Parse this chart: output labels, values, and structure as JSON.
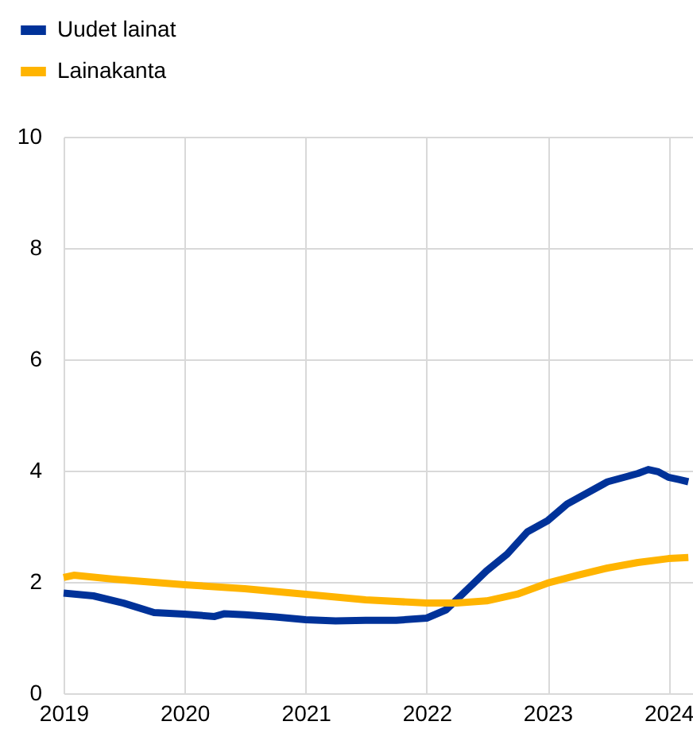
{
  "chart_data": {
    "type": "line",
    "xlim": [
      "2019-01-01",
      "2024-03-15"
    ],
    "xticks": [
      {
        "value": "2019-01-01",
        "label": "2019"
      },
      {
        "value": "2020-01-01",
        "label": "2020"
      },
      {
        "value": "2021-01-01",
        "label": "2021"
      },
      {
        "value": "2022-01-01",
        "label": "2022"
      },
      {
        "value": "2023-01-01",
        "label": "2023"
      },
      {
        "value": "2024-01-01",
        "label": "2024"
      }
    ],
    "ylim": [
      0,
      10
    ],
    "yticks": [
      0,
      2,
      4,
      6,
      8,
      10
    ],
    "grid": true,
    "legend": "top left",
    "line_style": "solid",
    "marker": "none",
    "series": [
      {
        "name": "Uudet lainat",
        "color": "#003299",
        "x": [
          "2019-01",
          "2019-04",
          "2019-07",
          "2019-10",
          "2020-01",
          "2020-04",
          "2020-05",
          "2020-07",
          "2020-10",
          "2021-01",
          "2021-04",
          "2021-07",
          "2021-10",
          "2022-01",
          "2022-03",
          "2022-05",
          "2022-07",
          "2022-09",
          "2022-11",
          "2023-01",
          "2023-03",
          "2023-05",
          "2023-07",
          "2023-09",
          "2023-10",
          "2023-11",
          "2023-12",
          "2024-01",
          "2024-02",
          "2024-03"
        ],
        "values": [
          1.8,
          1.75,
          1.62,
          1.45,
          1.42,
          1.38,
          1.43,
          1.41,
          1.37,
          1.32,
          1.3,
          1.31,
          1.31,
          1.35,
          1.5,
          1.85,
          2.2,
          2.5,
          2.9,
          3.1,
          3.4,
          3.6,
          3.8,
          3.9,
          3.95,
          4.02,
          3.98,
          3.88,
          3.84,
          3.8
        ]
      },
      {
        "name": "Lainakanta",
        "color": "#ffb400",
        "x": [
          "2019-01",
          "2019-02",
          "2019-06",
          "2020-01",
          "2020-07",
          "2021-01",
          "2021-07",
          "2022-01",
          "2022-04",
          "2022-07",
          "2022-10",
          "2023-01",
          "2023-04",
          "2023-07",
          "2023-10",
          "2024-01",
          "2024-03"
        ],
        "values": [
          2.08,
          2.12,
          2.05,
          1.95,
          1.88,
          1.78,
          1.68,
          1.62,
          1.62,
          1.66,
          1.78,
          1.98,
          2.12,
          2.25,
          2.35,
          2.42,
          2.44
        ]
      }
    ]
  }
}
